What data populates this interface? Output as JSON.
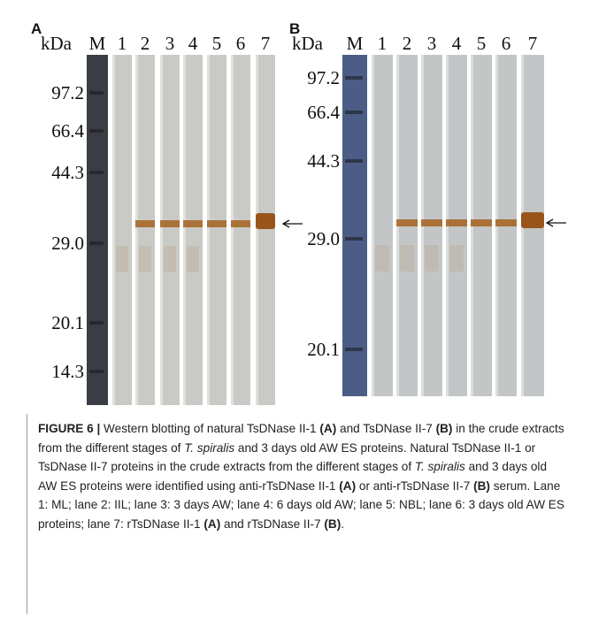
{
  "panels": [
    {
      "label": "A",
      "unit": "kDa",
      "lanes": [
        "M",
        "1",
        "2",
        "3",
        "4",
        "5",
        "6",
        "7"
      ],
      "markers": [
        "97.2",
        "66.4",
        "44.3",
        "29.0",
        "20.1",
        "14.3"
      ]
    },
    {
      "label": "B",
      "unit": "kDa",
      "lanes": [
        "M",
        "1",
        "2",
        "3",
        "4",
        "5",
        "6",
        "7"
      ],
      "markers": [
        "97.2",
        "66.4",
        "44.3",
        "29.0",
        "20.1"
      ]
    }
  ],
  "caption": [
    "FIGURE 6 |",
    " Western blotting of natural TsDNase II-1 ",
    "(A)",
    " and TsDNase II-7 ",
    "(B)",
    " in the crude extracts from the different stages of ",
    "T. spiralis",
    " and 3 days old AW ES proteins. Natural TsDNase II-1 or TsDNase II-7 proteins in the crude extracts from the different stages of ",
    "T. spiralis",
    " and 3 days old AW ES proteins were identified using anti-rTsDNase II-1 ",
    "(A)",
    " or anti-rTsDNase II-7 ",
    "(B)",
    " serum. Lane 1: ML; lane 2: IIL; lane 3: 3 days AW; lane 4: 6 days old AW; lane 5: NBL; lane 6: 3 days old AW ES proteins; lane 7: rTsDNase II-1 ",
    "(A)",
    " and rTsDNase II-7 ",
    "(B)",
    "."
  ]
}
